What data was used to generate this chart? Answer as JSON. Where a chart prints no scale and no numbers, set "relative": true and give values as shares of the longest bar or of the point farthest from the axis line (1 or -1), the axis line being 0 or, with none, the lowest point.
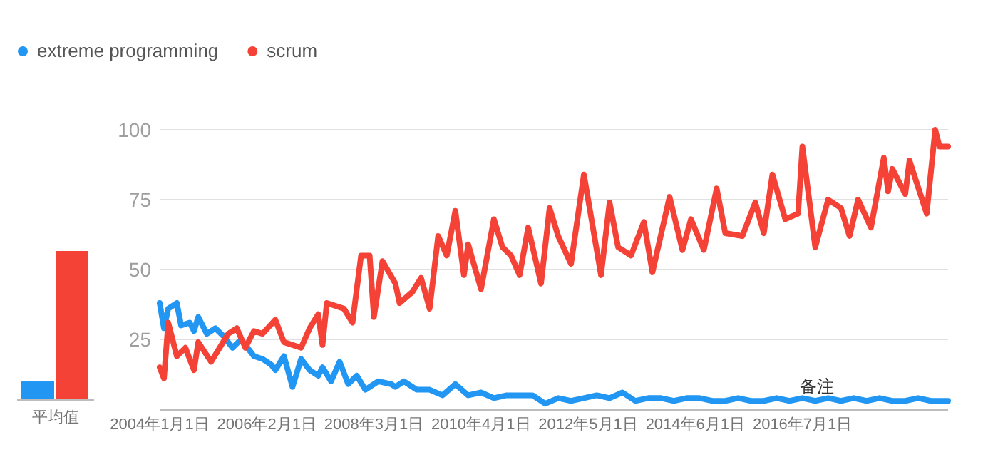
{
  "chart_data": [
    {
      "type": "bar",
      "categories": [
        "平均值"
      ],
      "relative": true,
      "series": [
        {
          "color": "#2196f3",
          "values": [
            0.12
          ]
        },
        {
          "color": "#f44336",
          "values": [
            1
          ]
        }
      ]
    },
    {
      "type": "line",
      "xlim": [
        "2004-01",
        "2019-05"
      ],
      "ylim": [
        0,
        100
      ],
      "yticks": [
        25,
        50,
        75,
        100
      ],
      "grid": "y",
      "legend": "top left",
      "xticks": [
        {
          "value": "2004-01-01",
          "label": "2004年1月1日"
        },
        {
          "value": "2006-02-01",
          "label": "2006年2月1日"
        },
        {
          "value": "2008-03-01",
          "label": "2008年3月1日"
        },
        {
          "value": "2010-04-01",
          "label": "2010年4月1日"
        },
        {
          "value": "2012-05-01",
          "label": "2012年5月1日"
        },
        {
          "value": "2014-06-01",
          "label": "2014年6月1日"
        },
        {
          "value": "2016-07-01",
          "label": "2016年7月1日"
        }
      ],
      "annotations": [
        "备注"
      ],
      "series": [
        {
          "name": "extreme programming",
          "color": "#2196f3",
          "x": [
            "2004-01",
            "2004-02",
            "2004-03",
            "2004-05",
            "2004-06",
            "2004-08",
            "2004-09",
            "2004-10",
            "2004-12",
            "2005-02",
            "2005-04",
            "2005-06",
            "2005-08",
            "2005-11",
            "2006-01",
            "2006-03",
            "2006-04",
            "2006-06",
            "2006-08",
            "2006-10",
            "2006-12",
            "2007-02",
            "2007-03",
            "2007-05",
            "2007-07",
            "2007-09",
            "2007-11",
            "2008-01",
            "2008-04",
            "2008-07",
            "2008-08",
            "2008-10",
            "2009-01",
            "2009-04",
            "2009-07",
            "2009-10",
            "2010-01",
            "2010-04",
            "2010-07",
            "2010-10",
            "2011-01",
            "2011-04",
            "2011-07",
            "2011-10",
            "2012-01",
            "2012-04",
            "2012-07",
            "2012-10",
            "2013-01",
            "2013-04",
            "2013-07",
            "2013-10",
            "2014-01",
            "2014-04",
            "2014-07",
            "2014-10",
            "2015-01",
            "2015-04",
            "2015-07",
            "2015-10",
            "2016-01",
            "2016-04",
            "2016-07",
            "2016-10",
            "2017-01",
            "2017-04",
            "2017-07",
            "2017-10",
            "2018-01",
            "2018-04",
            "2018-07",
            "2018-10",
            "2019-01",
            "2019-05"
          ],
          "values": [
            38,
            29,
            36,
            38,
            30,
            31,
            28,
            33,
            27,
            29,
            26,
            22,
            25,
            19,
            18,
            16,
            14,
            19,
            8,
            18,
            14,
            12,
            15,
            10,
            17,
            9,
            12,
            7,
            10,
            9,
            8,
            10,
            7,
            7,
            5,
            9,
            5,
            6,
            4,
            5,
            5,
            5,
            2,
            4,
            3,
            4,
            5,
            4,
            6,
            3,
            4,
            4,
            3,
            4,
            4,
            3,
            3,
            4,
            3,
            3,
            4,
            3,
            4,
            3,
            4,
            3,
            4,
            3,
            4,
            3,
            3,
            4,
            3,
            3
          ]
        },
        {
          "name": "scrum",
          "color": "#f44336",
          "x": [
            "2004-01",
            "2004-02",
            "2004-03",
            "2004-05",
            "2004-07",
            "2004-09",
            "2004-10",
            "2005-01",
            "2005-05",
            "2005-07",
            "2005-09",
            "2005-11",
            "2006-01",
            "2006-04",
            "2006-06",
            "2006-10",
            "2006-12",
            "2007-02",
            "2007-03",
            "2007-04",
            "2007-08",
            "2007-10",
            "2007-12",
            "2008-02",
            "2008-03",
            "2008-05",
            "2008-08",
            "2008-09",
            "2008-12",
            "2009-02",
            "2009-04",
            "2009-06",
            "2009-08",
            "2009-10",
            "2009-12",
            "2010-01",
            "2010-04",
            "2010-07",
            "2010-09",
            "2010-11",
            "2011-01",
            "2011-03",
            "2011-06",
            "2011-08",
            "2011-10",
            "2012-01",
            "2012-04",
            "2012-08",
            "2012-10",
            "2012-12",
            "2013-03",
            "2013-06",
            "2013-08",
            "2013-12",
            "2014-03",
            "2014-05",
            "2014-08",
            "2014-11",
            "2015-01",
            "2015-05",
            "2015-08",
            "2015-10",
            "2015-12",
            "2016-03",
            "2016-06",
            "2016-07",
            "2016-10",
            "2017-01",
            "2017-04",
            "2017-06",
            "2017-08",
            "2017-11",
            "2018-02",
            "2018-03",
            "2018-04",
            "2018-07",
            "2018-08",
            "2018-12",
            "2019-02",
            "2019-03",
            "2019-05"
          ],
          "values": [
            15,
            11,
            31,
            19,
            22,
            14,
            24,
            17,
            27,
            29,
            22,
            28,
            27,
            32,
            24,
            22,
            29,
            34,
            23,
            38,
            36,
            31,
            55,
            55,
            33,
            53,
            45,
            38,
            42,
            47,
            36,
            62,
            55,
            71,
            48,
            59,
            43,
            68,
            58,
            55,
            48,
            65,
            45,
            72,
            62,
            52,
            84,
            48,
            74,
            58,
            55,
            67,
            49,
            76,
            57,
            68,
            57,
            79,
            63,
            62,
            74,
            63,
            84,
            68,
            70,
            94,
            58,
            75,
            72,
            62,
            75,
            65,
            90,
            78,
            86,
            77,
            89,
            70,
            100,
            94,
            94
          ]
        }
      ]
    }
  ]
}
